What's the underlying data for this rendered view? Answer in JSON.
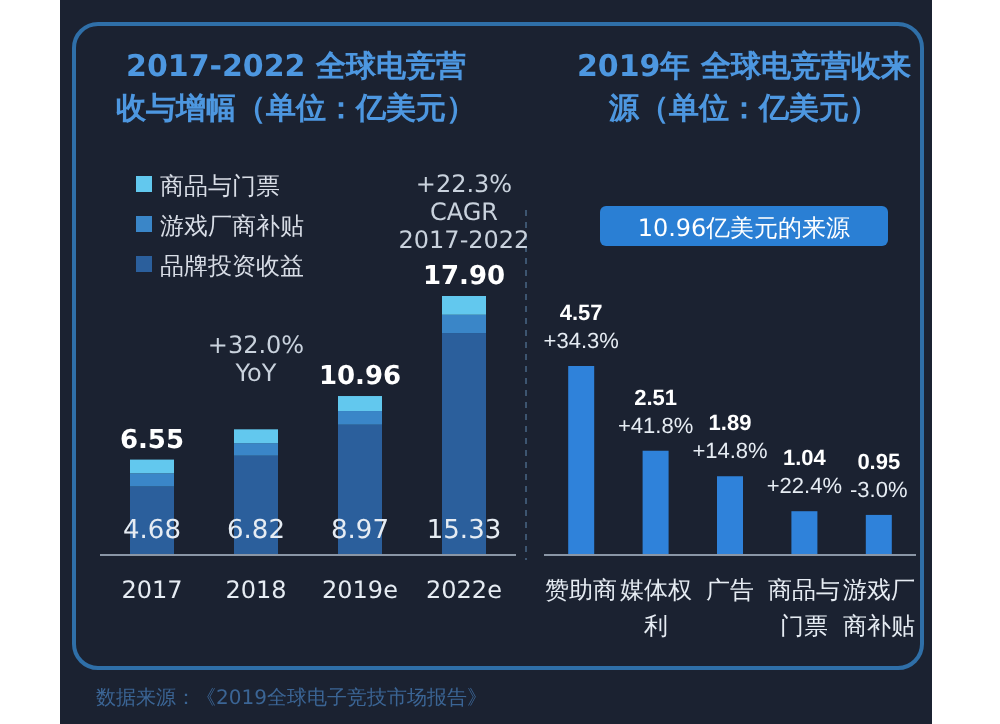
{
  "chart_data": [
    {
      "type": "bar",
      "title": "2017-2022 全球电竞营收与增幅（单位：亿美元）",
      "categories": [
        "2017",
        "2018",
        "2019e",
        "2022e"
      ],
      "stacked": true,
      "legend": "top left",
      "series": [
        {
          "name": "品牌投资收益",
          "color": "#2b5f9c",
          "values": [
            4.68,
            6.82,
            8.97,
            15.33
          ],
          "value_labels": [
            "4.68",
            "6.82",
            "8.97",
            "15.33"
          ]
        },
        {
          "name": "游戏厂商补贴",
          "color": "#3a86c8",
          "values": [
            0.92,
            0.87,
            0.95,
            1.27
          ]
        },
        {
          "name": "商品与门票",
          "color": "#62c8ee",
          "values": [
            0.95,
            0.96,
            1.04,
            1.3
          ]
        }
      ],
      "totals": [
        "6.55",
        null,
        "10.96",
        "17.90"
      ],
      "annotations": [
        {
          "text": "+32.0%\nYoY",
          "x": "2018",
          "y": 8.65
        },
        {
          "text": "+22.3%\nCAGR\n2017-2022",
          "x": "2022e",
          "y": 17.9
        },
        "数据来源：《2019全球电子竞技市场报告》"
      ]
    },
    {
      "type": "bar",
      "title": "2019年 全球电竞营收来源（单位：亿美元）",
      "subtitle": "10.96亿美元的来源",
      "categories": [
        "赞助商",
        "媒体权利",
        "广告",
        "商品与门票",
        "游戏厂商补贴"
      ],
      "values": [
        4.57,
        2.51,
        1.89,
        1.04,
        0.95
      ],
      "color": "#2f82da",
      "data_labels": true,
      "annotations": [
        {
          "text": "+34.3%",
          "x": "赞助商",
          "y": 4.57
        },
        {
          "text": "+41.8%",
          "x": "媒体权利",
          "y": 2.51
        },
        {
          "text": "+14.8%",
          "x": "广告",
          "y": 1.89
        },
        {
          "text": "+22.4%",
          "x": "商品与门票",
          "y": 1.04
        },
        {
          "text": "-3.0%",
          "x": "游戏厂商补贴",
          "y": 0.95
        }
      ]
    }
  ]
}
